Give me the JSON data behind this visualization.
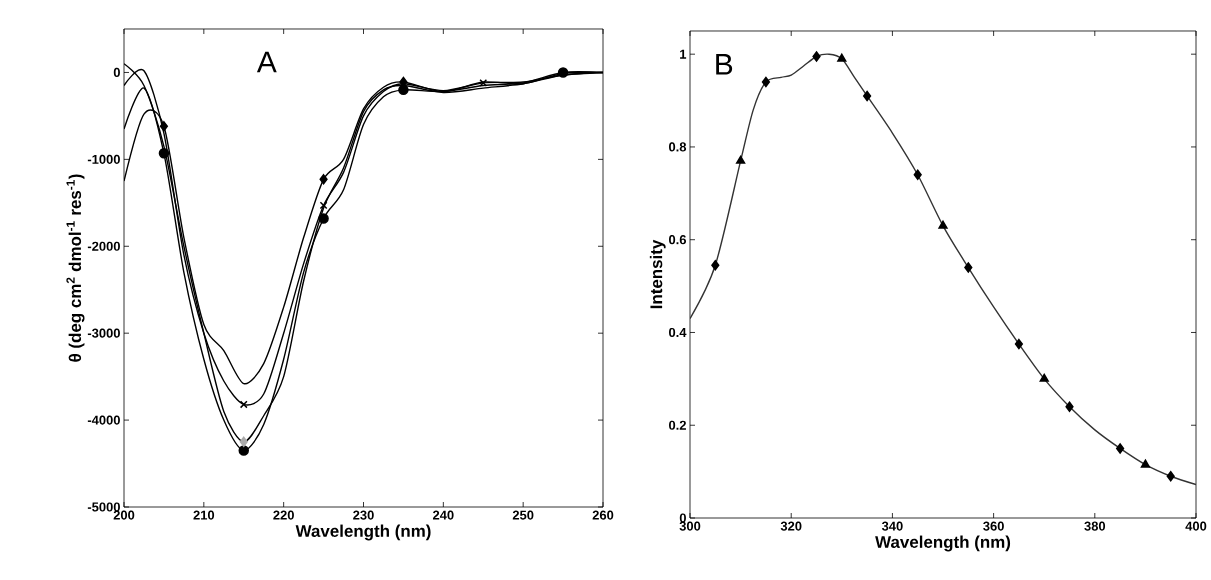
{
  "chart_data": [
    {
      "type": "line",
      "xlabel": "Wavelength (nm)",
      "ylabel": "θ (deg cm$^{2}$ dmol$^{-1}$ res$^{-1}$)",
      "annotations": [
        "A"
      ],
      "xlim": [
        200,
        260
      ],
      "ylim": [
        -5000,
        500
      ],
      "xticks": [
        200,
        210,
        220,
        230,
        240,
        250,
        260
      ],
      "yticks": [
        -5000,
        -4000,
        -3000,
        -2000,
        -1000,
        0
      ],
      "series": [
        {
          "color": "#000000",
          "marker": "none",
          "x": [
            200,
            202.5,
            205,
            207.5,
            210,
            212.5,
            215,
            217.5,
            220,
            222.5,
            225,
            227.5,
            230,
            232.5,
            235,
            240,
            245,
            250,
            255,
            260
          ],
          "values": [
            -650,
            -180,
            -930,
            -2300,
            -3300,
            -4000,
            -4350,
            -4050,
            -3300,
            -2300,
            -1680,
            -1350,
            -600,
            -280,
            -200,
            -220,
            -150,
            -120,
            0,
            0
          ]
        },
        {
          "color": "#000000",
          "marker": "none",
          "x": [
            200,
            202.5,
            205,
            207.5,
            210,
            212.5,
            215,
            217.5,
            220,
            222.5,
            225,
            227.5,
            230,
            232.5,
            235,
            240,
            245,
            250,
            255,
            260
          ],
          "values": [
            100,
            -150,
            -850,
            -2000,
            -3000,
            -3900,
            -4250,
            -3950,
            -3500,
            -2400,
            -1560,
            -1100,
            -450,
            -200,
            -150,
            -230,
            -180,
            -130,
            -30,
            0
          ]
        },
        {
          "color": "#000000",
          "marker": "none",
          "x": [
            200,
            202.5,
            205,
            207.5,
            210,
            212.5,
            215,
            217.5,
            220,
            222.5,
            225,
            227.5,
            230,
            232.5,
            235,
            240,
            245,
            250,
            255,
            260
          ],
          "values": [
            -150,
            20,
            -700,
            -2100,
            -3000,
            -3550,
            -3820,
            -3700,
            -3000,
            -2200,
            -1530,
            -1150,
            -500,
            -220,
            -130,
            -210,
            -120,
            -110,
            -30,
            0
          ]
        },
        {
          "color": "#000000",
          "marker": "none",
          "x": [
            200,
            202.5,
            205,
            207.5,
            210,
            212.5,
            215,
            217.5,
            220,
            222.5,
            225,
            227.5,
            230,
            232.5,
            235,
            240,
            245,
            250,
            255,
            260
          ],
          "values": [
            -1250,
            -480,
            -620,
            -1900,
            -2900,
            -3200,
            -3580,
            -3350,
            -2700,
            -1900,
            -1230,
            -1000,
            -420,
            -170,
            -110,
            -220,
            -110,
            -130,
            -10,
            0
          ]
        },
        {
          "type": "scatter",
          "color": "#000000",
          "marker": "circle",
          "x": [
            205,
            215,
            225,
            235,
            255
          ],
          "values": [
            -930,
            -4350,
            -1680,
            -200,
            0
          ]
        },
        {
          "type": "scatter",
          "color": "#aaaaaa",
          "marker": "diamond",
          "x": [
            215
          ],
          "values": [
            -4250
          ]
        },
        {
          "type": "scatter",
          "color": "#000000",
          "marker": "cross",
          "x": [
            215,
            225,
            245
          ],
          "values": [
            -3820,
            -1530,
            -120
          ]
        },
        {
          "type": "scatter",
          "color": "#000000",
          "marker": "diamond",
          "x": [
            205,
            225,
            235
          ],
          "values": [
            -620,
            -1230,
            -110
          ]
        }
      ]
    },
    {
      "type": "line",
      "xlabel": "Wavelength (nm)",
      "ylabel": "Intensity",
      "annotations": [
        "B"
      ],
      "xlim": [
        300,
        400
      ],
      "ylim": [
        0,
        1.05
      ],
      "xticks": [
        300,
        320,
        340,
        360,
        380,
        400
      ],
      "yticks": [
        0,
        0.2,
        0.4,
        0.6,
        0.8,
        1
      ],
      "series": [
        {
          "color": "#333333",
          "marker": "none",
          "x": [
            300,
            305,
            310,
            312.5,
            315,
            318,
            320,
            322.5,
            325,
            327.5,
            330,
            332.5,
            335,
            340,
            345,
            350,
            355,
            360,
            365,
            370,
            375,
            380,
            385,
            390,
            395,
            400
          ],
          "values": [
            0.43,
            0.545,
            0.77,
            0.88,
            0.94,
            0.95,
            0.955,
            0.975,
            0.995,
            1.0,
            0.99,
            0.95,
            0.91,
            0.83,
            0.74,
            0.63,
            0.54,
            0.455,
            0.375,
            0.3,
            0.24,
            0.19,
            0.15,
            0.115,
            0.09,
            0.072
          ]
        },
        {
          "type": "scatter",
          "color": "#000000",
          "marker": "diamond",
          "x": [
            305,
            315,
            325,
            335,
            345,
            355,
            365,
            375,
            385,
            395
          ],
          "values": [
            0.545,
            0.94,
            0.995,
            0.91,
            0.74,
            0.54,
            0.375,
            0.24,
            0.15,
            0.09
          ]
        },
        {
          "type": "scatter",
          "color": "#000000",
          "marker": "triangle",
          "x": [
            310,
            330,
            350,
            370,
            390
          ],
          "values": [
            0.77,
            0.99,
            0.63,
            0.3,
            0.115
          ]
        }
      ]
    }
  ]
}
